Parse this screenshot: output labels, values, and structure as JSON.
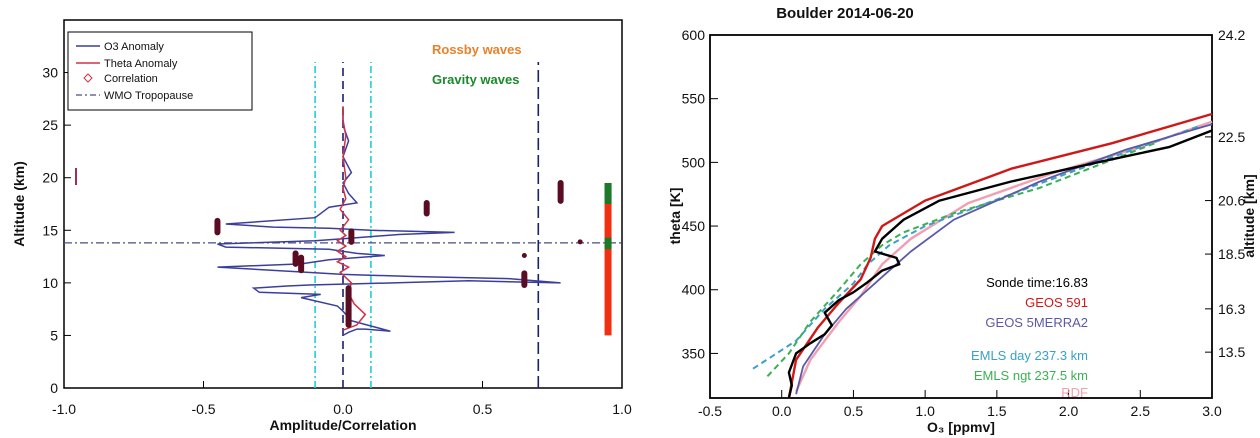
{
  "chart_data": [
    {
      "type": "line",
      "xlabel": "Amplitude/Correlation",
      "ylabel": "Altitude (km)",
      "xlim": [
        -1.0,
        1.0
      ],
      "ylim": [
        0,
        35
      ],
      "x_ticks": [
        "-1.0",
        "-0.5",
        "0.0",
        "0.5",
        "1.0"
      ],
      "y_ticks": [
        "0",
        "5",
        "10",
        "15",
        "20",
        "25",
        "30"
      ],
      "legend": [
        "O3 Anomaly",
        "Theta Anomaly",
        "Correlation",
        "WMO Tropopause"
      ],
      "annotations": [
        {
          "text": "Rossby waves",
          "color": "#e8822a"
        },
        {
          "text": "Gravity waves",
          "color": "#1a8a2a"
        }
      ],
      "colors": {
        "o3": "#3b3f9c",
        "theta": "#d0304a",
        "corr": "#5a0c22",
        "trop": "#4a4f80",
        "cyan": "#1fd0d8",
        "navy": "#1a1f6e",
        "red_bar": "#f03010",
        "green_bar": "#1b7a2a"
      },
      "tropopause_km": 13.8,
      "vertical_lines": [
        -0.1,
        0.0,
        0.1,
        0.7
      ],
      "series": [
        {
          "name": "O3 Anomaly",
          "x": [
            0.0,
            0.02,
            0.05,
            0.08,
            0.17,
            0.1,
            0.03,
            0.0,
            -0.02,
            -0.15,
            -0.08,
            -0.3,
            -0.32,
            -0.2,
            -0.12,
            0.18,
            0.45,
            0.78,
            0.6,
            0.25,
            0.0,
            -0.45,
            -0.15,
            -0.05,
            0.05,
            0.15,
            0.05,
            -0.05,
            -0.42,
            -0.45,
            -0.1,
            0.0,
            0.1,
            0.2,
            0.4,
            0.1,
            -0.05,
            -0.25,
            -0.42,
            -0.1,
            -0.05,
            0.05,
            0.02,
            0.0,
            0.03,
            0.0,
            0.02,
            0.0,
            0.0
          ],
          "y": [
            5.0,
            5.3,
            5.6,
            5.6,
            5.4,
            5.9,
            6.4,
            7.3,
            7.8,
            8.6,
            8.9,
            9.1,
            9.5,
            9.7,
            9.8,
            10.0,
            10.2,
            10.0,
            10.4,
            10.6,
            10.8,
            11.5,
            11.8,
            12.2,
            12.4,
            12.6,
            12.8,
            13.2,
            13.4,
            13.7,
            14.0,
            14.2,
            14.4,
            14.6,
            14.8,
            15.0,
            15.2,
            15.3,
            15.6,
            16.2,
            17.2,
            17.6,
            18.5,
            19.5,
            20.5,
            22.0,
            23.5,
            25.0,
            26.5
          ]
        },
        {
          "name": "Theta Anomaly",
          "x": [
            0.0,
            0.05,
            0.08,
            0.04,
            0.02,
            0.03,
            -0.01,
            0.02,
            -0.02,
            0.01,
            -0.02,
            0.01,
            -0.02,
            0.01,
            -0.01,
            0.02,
            -0.01,
            0.01,
            0.0,
            0.01,
            0.0,
            0.01,
            0.0,
            0.0
          ],
          "y": [
            5.5,
            6.0,
            7.0,
            8.0,
            9.0,
            10.0,
            11.0,
            11.5,
            12.0,
            12.5,
            13.0,
            13.5,
            14.0,
            14.5,
            15.0,
            16.0,
            17.0,
            18.0,
            19.0,
            20.0,
            22.0,
            24.0,
            25.5,
            26.8
          ]
        }
      ]
    },
    {
      "type": "line",
      "title": "Boulder   2014-06-20",
      "xlabel": "O₃ [ppmv]",
      "ylabel": "theta [K]",
      "y2label": "altitude [km]",
      "xlim": [
        -0.5,
        3.0
      ],
      "ylim": [
        315,
        600
      ],
      "x_ticks": [
        "-0.5",
        "0.0",
        "0.5",
        "1.0",
        "1.5",
        "2.0",
        "2.5",
        "3.0"
      ],
      "y_ticks": [
        "350",
        "400",
        "450",
        "500",
        "550",
        "600"
      ],
      "y2_ticks": [
        "13.5",
        "16.3",
        "18.5",
        "20.6",
        "22.5",
        "24.2"
      ],
      "legend_texts": {
        "sonde": "Sonde time:16.83",
        "geos591": "GEOS 591",
        "geos5merra2": "GEOS 5MERRA2",
        "emls_day": "EMLS day 237.3 km",
        "emls_ngt": "EMLS ngt 237.5 km",
        "rdf": "RDF"
      },
      "series": [
        {
          "name": "Sonde",
          "color": "#000000",
          "x": [
            0.05,
            0.07,
            0.05,
            0.1,
            0.2,
            0.3,
            0.35,
            0.3,
            0.4,
            0.5,
            0.55,
            0.6,
            0.7,
            0.82,
            0.8,
            0.65,
            0.7,
            0.85,
            1.1,
            1.6,
            2.2,
            2.7,
            3.0
          ],
          "y": [
            315,
            325,
            335,
            350,
            358,
            365,
            372,
            382,
            392,
            398,
            402,
            406,
            415,
            420,
            425,
            430,
            440,
            455,
            470,
            485,
            500,
            512,
            525
          ]
        },
        {
          "name": "GEOS 591",
          "color": "#d01818",
          "x": [
            0.05,
            0.1,
            0.25,
            0.4,
            0.55,
            0.62,
            0.65,
            0.7,
            1.0,
            1.6,
            2.3,
            3.0
          ],
          "y": [
            315,
            345,
            370,
            390,
            408,
            425,
            440,
            450,
            470,
            495,
            515,
            538
          ]
        },
        {
          "name": "GEOS 5MERRA2",
          "color": "#5a5aa8",
          "x": [
            0.1,
            0.15,
            0.3,
            0.45,
            0.6,
            0.75,
            0.9,
            1.2,
            1.8,
            2.4,
            3.0
          ],
          "y": [
            318,
            340,
            365,
            385,
            400,
            415,
            430,
            455,
            485,
            510,
            530
          ]
        },
        {
          "name": "EMLS day 237.3 km",
          "color": "#3aa0c8",
          "x": [
            -0.2,
            0.1,
            0.3,
            0.5,
            0.6,
            0.75,
            1.0,
            1.6,
            2.2,
            2.9
          ],
          "y": [
            338,
            360,
            385,
            405,
            420,
            435,
            450,
            475,
            500,
            528
          ]
        },
        {
          "name": "EMLS ngt 237.5 km",
          "color": "#3ab050",
          "x": [
            -0.1,
            0.05,
            0.2,
            0.4,
            0.55,
            0.7,
            0.85,
            1.2,
            1.8,
            2.6
          ],
          "y": [
            332,
            350,
            375,
            400,
            420,
            435,
            445,
            460,
            480,
            515
          ]
        },
        {
          "name": "RDF",
          "color": "#f0a0b0",
          "x": [
            0.1,
            0.2,
            0.3,
            0.4,
            0.55,
            0.7,
            0.9,
            1.3,
            1.9,
            2.5,
            3.0
          ],
          "y": [
            320,
            345,
            360,
            375,
            395,
            420,
            440,
            468,
            492,
            512,
            532
          ]
        }
      ]
    }
  ]
}
